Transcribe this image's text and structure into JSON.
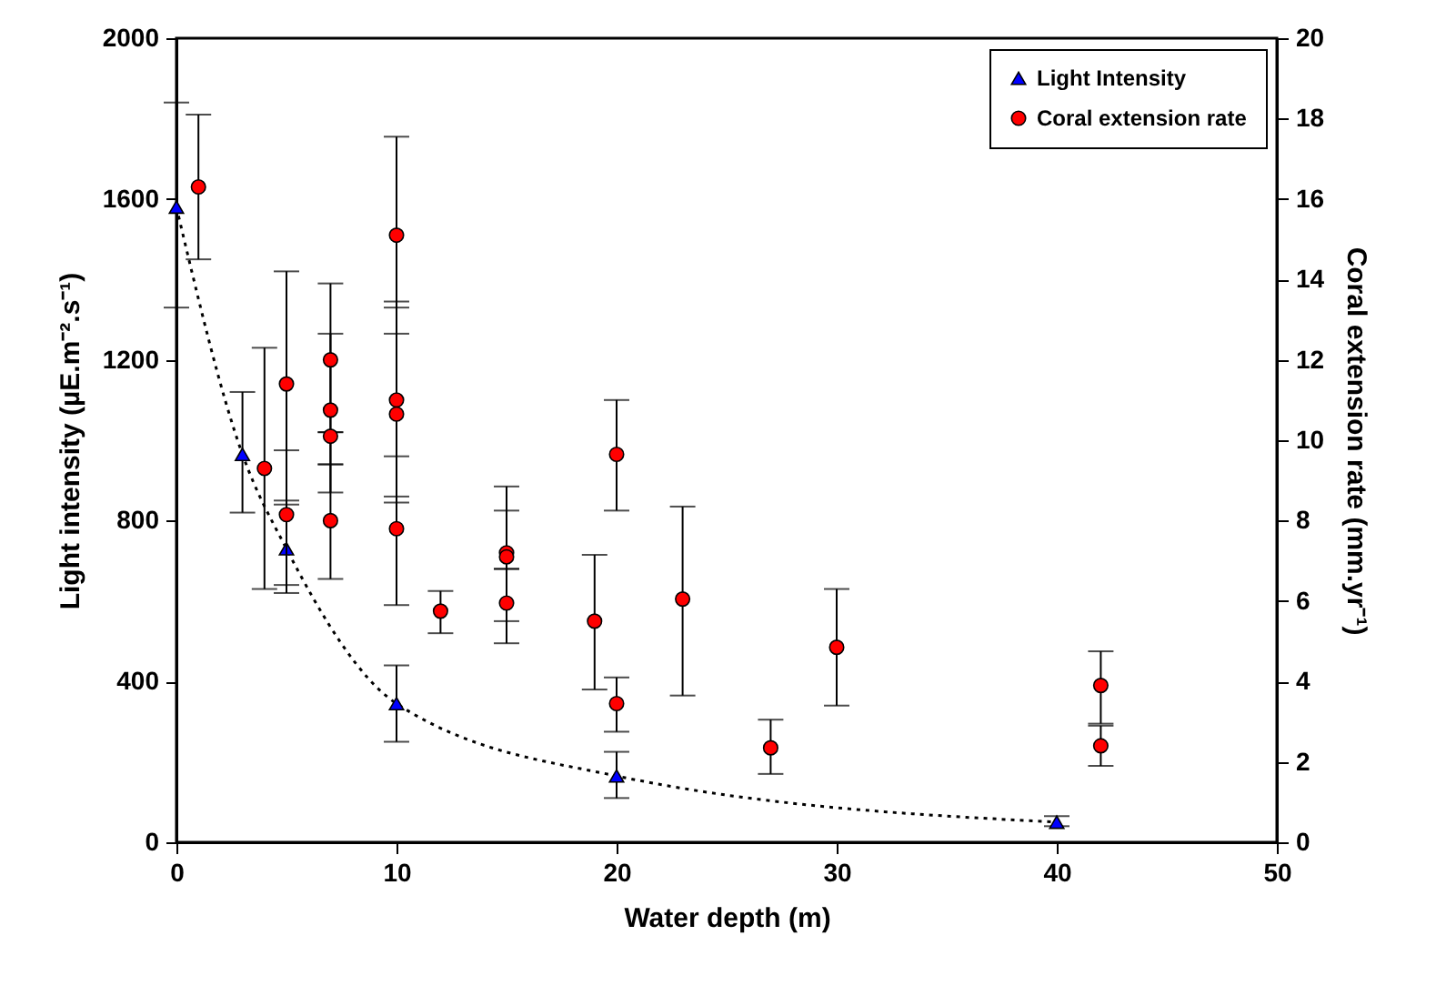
{
  "chart_data": {
    "type": "scatter",
    "xlabel": "Water depth (m)",
    "ylabel": "Light intensity (µE.m⁻².s⁻¹)",
    "y2label": "Coral extension rate (mm.yr⁻¹)",
    "xlim": [
      0,
      50
    ],
    "xticks": [
      0,
      10,
      20,
      30,
      40,
      50
    ],
    "ylim": [
      0,
      2000
    ],
    "yticks": [
      0,
      400,
      800,
      1200,
      1600,
      2000
    ],
    "y2lim": [
      0,
      20
    ],
    "y2ticks": [
      0,
      2,
      4,
      6,
      8,
      10,
      12,
      14,
      16,
      18,
      20
    ],
    "grid": false,
    "legend": "top right",
    "series": [
      {
        "name": "Light Intensity",
        "type": "line",
        "color": "#0000ff",
        "marker": "triangle",
        "line_style": "dotted",
        "x": [
          0,
          3,
          5,
          10,
          20,
          40
        ],
        "values": [
          1580,
          965,
          730,
          345,
          165,
          50
        ],
        "errors": [
          [
            1330,
            1840
          ],
          [
            820,
            1120
          ],
          [
            640,
            840
          ],
          [
            250,
            440
          ],
          [
            110,
            225
          ],
          [
            40,
            65
          ]
        ]
      },
      {
        "name": "Coral extension rate",
        "axis": "y2",
        "color": "#ff0000",
        "marker": "circle",
        "x": [
          1,
          4,
          5,
          5,
          7,
          7,
          7,
          7,
          10,
          10,
          10,
          10,
          12,
          15,
          15,
          15,
          19,
          20,
          20,
          23,
          27,
          30,
          42,
          42
        ],
        "values": [
          16.3,
          9.3,
          11.4,
          8.15,
          12.0,
          10.75,
          10.1,
          8.0,
          15.1,
          11.0,
          10.65,
          7.8,
          5.75,
          7.2,
          7.1,
          5.95,
          5.5,
          9.65,
          3.45,
          6.05,
          2.35,
          4.85,
          3.9,
          2.4
        ],
        "errors": [
          [
            14.5,
            18.1
          ],
          [
            6.3,
            12.3
          ],
          [
            8.5,
            14.2
          ],
          [
            6.2,
            9.75
          ],
          [
            10.2,
            13.9
          ],
          [
            8.7,
            12.65
          ],
          [
            9.4,
            10.2
          ],
          [
            6.55,
            9.4
          ],
          [
            12.65,
            17.55
          ],
          [
            8.6,
            13.45
          ],
          [
            8.45,
            13.3
          ],
          [
            5.9,
            9.6
          ],
          [
            5.2,
            6.25
          ],
          [
            5.5,
            8.85
          ],
          [
            6.8,
            8.25
          ],
          [
            4.95,
            6.8
          ],
          [
            3.8,
            7.15
          ],
          [
            8.25,
            11.0
          ],
          [
            2.75,
            4.1
          ],
          [
            3.65,
            8.35
          ],
          [
            1.7,
            3.05
          ],
          [
            3.4,
            6.3
          ],
          [
            2.95,
            4.75
          ],
          [
            1.9,
            2.9
          ]
        ]
      }
    ]
  }
}
